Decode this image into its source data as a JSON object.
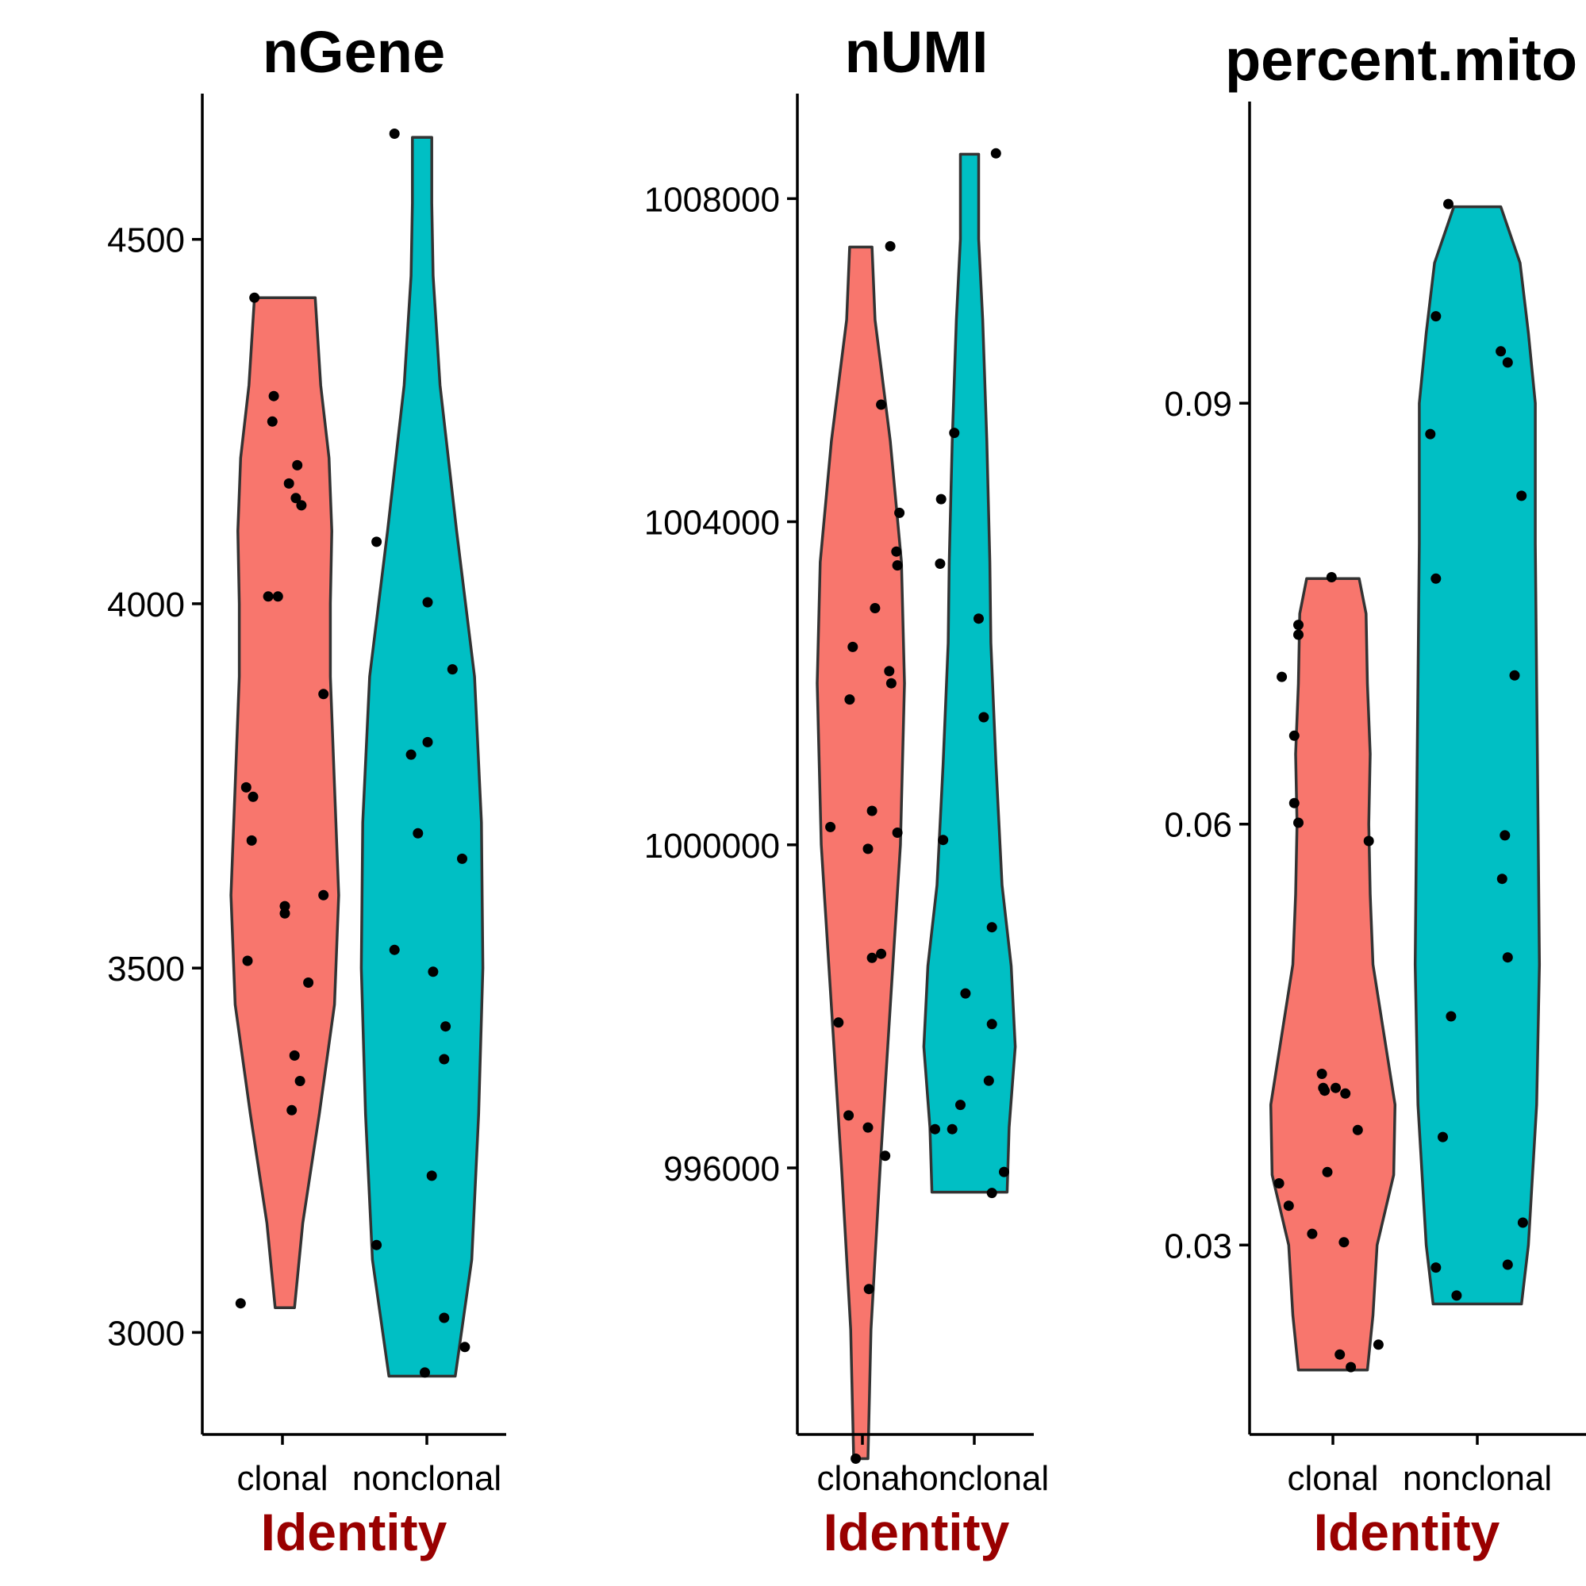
{
  "colors": {
    "clonal": "#F8766D",
    "nonclonal": "#00BFC4",
    "xlabel": "#990000"
  },
  "chart_data": [
    {
      "type": "violin",
      "title": "nGene",
      "xlabel": "Identity",
      "categories": [
        "clonal",
        "nonclonal"
      ],
      "ylim": [
        2860,
        4700
      ],
      "yticks": [
        3000,
        3500,
        4000,
        4500
      ],
      "ytick_labels": [
        "3000",
        "3500",
        "4000",
        "4500"
      ],
      "violins": [
        {
          "name": "clonal",
          "ymin": 3034,
          "ymax": 4420,
          "profile": [
            [
              3034,
              0.07
            ],
            [
              3150,
              0.13
            ],
            [
              3300,
              0.25
            ],
            [
              3450,
              0.36
            ],
            [
              3600,
              0.39
            ],
            [
              3750,
              0.36
            ],
            [
              3900,
              0.33
            ],
            [
              4000,
              0.33
            ],
            [
              4100,
              0.34
            ],
            [
              4200,
              0.32
            ],
            [
              4300,
              0.26
            ],
            [
              4420,
              0.22
            ]
          ],
          "points": [
            [
              -0.32,
              3040
            ],
            [
              -0.27,
              3510
            ],
            [
              -0.28,
              3748
            ],
            [
              -0.23,
              3735
            ],
            [
              -0.24,
              3675
            ],
            [
              -0.12,
              4010
            ],
            [
              -0.05,
              4010
            ],
            [
              -0.22,
              4420
            ],
            [
              -0.09,
              4250
            ],
            [
              -0.08,
              4285
            ],
            [
              0.03,
              4165
            ],
            [
              0.09,
              4190
            ],
            [
              0.08,
              4145
            ],
            [
              0.0,
              3585
            ],
            [
              0.0,
              3575
            ],
            [
              0.12,
              4135
            ],
            [
              0.28,
              3876
            ],
            [
              0.28,
              3600
            ],
            [
              0.17,
              3480
            ],
            [
              0.07,
              3380
            ],
            [
              0.11,
              3345
            ],
            [
              0.05,
              3305
            ]
          ]
        },
        {
          "name": "nonclonal",
          "ymin": 2940,
          "ymax": 4640,
          "profile": [
            [
              2940,
              0.24
            ],
            [
              3100,
              0.36
            ],
            [
              3300,
              0.41
            ],
            [
              3500,
              0.44
            ],
            [
              3700,
              0.43
            ],
            [
              3900,
              0.38
            ],
            [
              4100,
              0.25
            ],
            [
              4300,
              0.13
            ],
            [
              4450,
              0.08
            ],
            [
              4550,
              0.07
            ],
            [
              4640,
              0.07
            ]
          ],
          "points": [
            [
              -0.2,
              4645
            ],
            [
              -0.33,
              4085
            ],
            [
              0.04,
              4002
            ],
            [
              0.22,
              3910
            ],
            [
              -0.08,
              3793
            ],
            [
              0.04,
              3810
            ],
            [
              -0.03,
              3685
            ],
            [
              0.29,
              3650
            ],
            [
              -0.2,
              3525
            ],
            [
              0.08,
              3495
            ],
            [
              0.17,
              3420
            ],
            [
              0.16,
              3375
            ],
            [
              0.07,
              3215
            ],
            [
              -0.33,
              3120
            ],
            [
              0.16,
              3020
            ],
            [
              0.31,
              2980
            ],
            [
              0.02,
              2945
            ]
          ]
        }
      ]
    },
    {
      "type": "violin",
      "title": "nUMI",
      "xlabel": "Identity",
      "categories": [
        "clonal",
        "nonclonal"
      ],
      "ylim": [
        992700,
        1009300
      ],
      "yticks": [
        996000,
        1000000,
        1004000,
        1008000
      ],
      "ytick_labels": [
        "996000",
        "1000000",
        "1004000",
        "1008000"
      ],
      "violins": [
        {
          "name": "clonal",
          "ymin": 992400,
          "ymax": 1007400,
          "profile": [
            [
              992400,
              0.07
            ],
            [
              994000,
              0.1
            ],
            [
              996000,
              0.19
            ],
            [
              998000,
              0.29
            ],
            [
              1000000,
              0.39
            ],
            [
              1002000,
              0.43
            ],
            [
              1003500,
              0.4
            ],
            [
              1005000,
              0.29
            ],
            [
              1006500,
              0.14
            ],
            [
              1007400,
              0.11
            ]
          ],
          "points": [
            [
              -0.05,
              992400
            ],
            [
              0.08,
              994500
            ],
            [
              -0.12,
              996650
            ],
            [
              0.07,
              996500
            ],
            [
              0.24,
              996150
            ],
            [
              -0.22,
              997800
            ],
            [
              0.11,
              998600
            ],
            [
              0.2,
              998650
            ],
            [
              -0.3,
              1000220
            ],
            [
              0.07,
              999950
            ],
            [
              0.11,
              1000420
            ],
            [
              0.36,
              1000150
            ],
            [
              -0.11,
              1001800
            ],
            [
              0.3,
              1002000
            ],
            [
              0.28,
              1002150
            ],
            [
              -0.08,
              1002450
            ],
            [
              0.14,
              1002930
            ],
            [
              0.36,
              1003460
            ],
            [
              0.35,
              1003630
            ],
            [
              0.38,
              1004110
            ],
            [
              0.2,
              1005450
            ],
            [
              0.29,
              1007410
            ]
          ]
        },
        {
          "name": "nonclonal",
          "ymin": 995700,
          "ymax": 1008550,
          "profile": [
            [
              995700,
              0.37
            ],
            [
              996500,
              0.39
            ],
            [
              997500,
              0.45
            ],
            [
              998500,
              0.41
            ],
            [
              999500,
              0.32
            ],
            [
              1001000,
              0.26
            ],
            [
              1002500,
              0.21
            ],
            [
              1003500,
              0.2
            ],
            [
              1005000,
              0.17
            ],
            [
              1006500,
              0.13
            ],
            [
              1007500,
              0.09
            ],
            [
              1008550,
              0.09
            ]
          ],
          "points": [
            [
              0.26,
              1008560
            ],
            [
              -0.15,
              1005100
            ],
            [
              -0.28,
              1004280
            ],
            [
              -0.29,
              1003480
            ],
            [
              0.09,
              1002800
            ],
            [
              0.14,
              1001580
            ],
            [
              -0.26,
              1000060
            ],
            [
              0.22,
              998980
            ],
            [
              -0.04,
              998160
            ],
            [
              0.22,
              997780
            ],
            [
              0.19,
              997080
            ],
            [
              -0.09,
              996780
            ],
            [
              -0.34,
              996480
            ],
            [
              -0.17,
              996480
            ],
            [
              0.34,
              995950
            ],
            [
              0.22,
              995690
            ]
          ]
        }
      ]
    },
    {
      "type": "violin",
      "title": "percent.mito",
      "xlabel": "Identity",
      "categories": [
        "clonal",
        "nonclonal"
      ],
      "ylim": [
        0.0165,
        0.1115
      ],
      "yticks": [
        0.03,
        0.06,
        0.09
      ],
      "ytick_labels": [
        "0.03",
        "0.06",
        "0.09"
      ],
      "violins": [
        {
          "name": "clonal",
          "ymin": 0.0211,
          "ymax": 0.0775,
          "profile": [
            [
              0.0211,
              0.25
            ],
            [
              0.025,
              0.29
            ],
            [
              0.03,
              0.32
            ],
            [
              0.035,
              0.44
            ],
            [
              0.04,
              0.45
            ],
            [
              0.045,
              0.37
            ],
            [
              0.05,
              0.29
            ],
            [
              0.055,
              0.27
            ],
            [
              0.06,
              0.26
            ],
            [
              0.065,
              0.27
            ],
            [
              0.07,
              0.25
            ],
            [
              0.075,
              0.24
            ],
            [
              0.0775,
              0.19
            ]
          ],
          "points": [
            [
              -0.37,
              0.0705
            ],
            [
              -0.28,
              0.0663
            ],
            [
              -0.25,
              0.0742
            ],
            [
              -0.25,
              0.0735
            ],
            [
              -0.28,
              0.0615
            ],
            [
              -0.25,
              0.0601
            ],
            [
              0.26,
              0.0588
            ],
            [
              -0.01,
              0.0776
            ],
            [
              -0.08,
              0.0422
            ],
            [
              -0.07,
              0.0412
            ],
            [
              -0.06,
              0.041
            ],
            [
              0.02,
              0.0412
            ],
            [
              0.09,
              0.0408
            ],
            [
              0.18,
              0.0382
            ],
            [
              -0.04,
              0.0352
            ],
            [
              -0.39,
              0.0344
            ],
            [
              -0.32,
              0.0328
            ],
            [
              -0.15,
              0.0308
            ],
            [
              0.08,
              0.0302
            ],
            [
              0.05,
              0.0222
            ],
            [
              0.13,
              0.0213
            ],
            [
              0.33,
              0.0229
            ]
          ]
        },
        {
          "name": "nonclonal",
          "ymin": 0.0258,
          "ymax": 0.104,
          "profile": [
            [
              0.0258,
              0.32
            ],
            [
              0.03,
              0.37
            ],
            [
              0.04,
              0.43
            ],
            [
              0.05,
              0.45
            ],
            [
              0.06,
              0.44
            ],
            [
              0.07,
              0.43
            ],
            [
              0.08,
              0.42
            ],
            [
              0.09,
              0.42
            ],
            [
              0.095,
              0.37
            ],
            [
              0.1,
              0.31
            ],
            [
              0.104,
              0.17
            ]
          ],
          "points": [
            [
              -0.21,
              0.1042
            ],
            [
              -0.3,
              0.0962
            ],
            [
              -0.34,
              0.0878
            ],
            [
              -0.3,
              0.0775
            ],
            [
              0.17,
              0.0937
            ],
            [
              0.22,
              0.0929
            ],
            [
              0.32,
              0.0834
            ],
            [
              0.27,
              0.0706
            ],
            [
              0.2,
              0.0592
            ],
            [
              0.18,
              0.0561
            ],
            [
              0.22,
              0.0505
            ],
            [
              -0.19,
              0.0463
            ],
            [
              -0.25,
              0.0377
            ],
            [
              -0.3,
              0.0284
            ],
            [
              -0.15,
              0.0264
            ],
            [
              0.22,
              0.0286
            ],
            [
              0.33,
              0.0316
            ]
          ]
        }
      ]
    }
  ]
}
